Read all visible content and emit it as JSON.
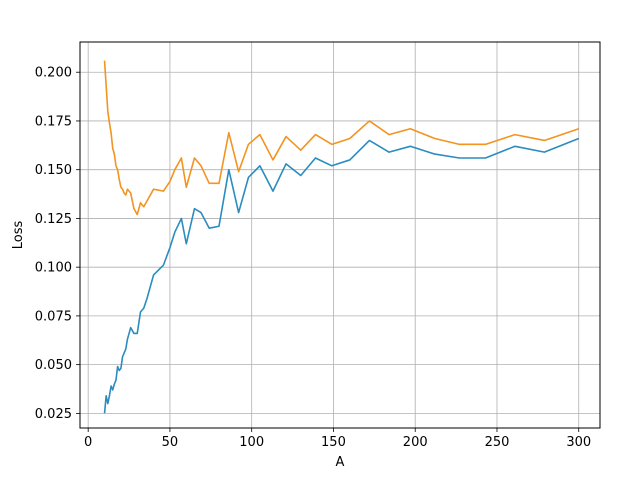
{
  "chart_data": {
    "type": "line",
    "title": "",
    "xlabel": "A",
    "ylabel": "Loss",
    "xlim": [
      -5,
      313
    ],
    "ylim": [
      0.0175,
      0.2155
    ],
    "grid": true,
    "x_ticks": [
      0,
      50,
      100,
      150,
      200,
      250,
      300
    ],
    "x_tick_labels": [
      "0",
      "50",
      "100",
      "150",
      "200",
      "250",
      "300"
    ],
    "y_ticks": [
      0.025,
      0.05,
      0.075,
      0.1,
      0.125,
      0.15,
      0.175,
      0.2
    ],
    "y_tick_labels": [
      "0.025",
      "0.050",
      "0.075",
      "0.100",
      "0.125",
      "0.150",
      "0.175",
      "0.200"
    ],
    "series": [
      {
        "color": "#2b8cbe",
        "x": [
          10,
          11,
          12,
          13,
          14,
          15,
          16,
          17,
          18,
          19,
          20,
          21,
          22,
          23,
          24,
          25,
          26,
          28,
          30,
          32,
          34,
          36,
          40,
          46,
          50,
          53,
          57,
          60,
          65,
          69,
          74,
          80,
          86,
          92,
          98,
          105,
          113,
          121,
          130,
          139,
          149,
          160,
          172,
          184,
          197,
          212,
          227,
          243,
          261,
          279,
          300
        ],
        "y": [
          0.025,
          0.034,
          0.03,
          0.034,
          0.039,
          0.037,
          0.04,
          0.042,
          0.049,
          0.047,
          0.048,
          0.054,
          0.056,
          0.058,
          0.063,
          0.066,
          0.069,
          0.066,
          0.066,
          0.077,
          0.079,
          0.084,
          0.096,
          0.101,
          0.11,
          0.118,
          0.125,
          0.112,
          0.13,
          0.128,
          0.12,
          0.121,
          0.15,
          0.128,
          0.146,
          0.152,
          0.139,
          0.153,
          0.147,
          0.156,
          0.152,
          0.155,
          0.165,
          0.159,
          0.162,
          0.158,
          0.156,
          0.156,
          0.162,
          0.159,
          0.166
        ]
      },
      {
        "color": "#f39320",
        "x": [
          10,
          11,
          12,
          13,
          14,
          15,
          16,
          17,
          18,
          19,
          20,
          21,
          22,
          23,
          24,
          25,
          26,
          28,
          30,
          32,
          34,
          36,
          40,
          46,
          50,
          53,
          57,
          60,
          65,
          69,
          74,
          80,
          86,
          92,
          98,
          105,
          113,
          121,
          130,
          139,
          149,
          160,
          172,
          184,
          197,
          212,
          227,
          243,
          261,
          279,
          300
        ],
        "y": [
          0.206,
          0.193,
          0.18,
          0.174,
          0.169,
          0.161,
          0.158,
          0.152,
          0.15,
          0.145,
          0.141,
          0.14,
          0.138,
          0.137,
          0.14,
          0.139,
          0.138,
          0.13,
          0.127,
          0.133,
          0.131,
          0.134,
          0.14,
          0.139,
          0.144,
          0.15,
          0.156,
          0.141,
          0.156,
          0.152,
          0.143,
          0.143,
          0.169,
          0.149,
          0.163,
          0.168,
          0.155,
          0.167,
          0.16,
          0.168,
          0.163,
          0.166,
          0.175,
          0.168,
          0.171,
          0.166,
          0.163,
          0.163,
          0.168,
          0.165,
          0.171
        ]
      }
    ]
  }
}
